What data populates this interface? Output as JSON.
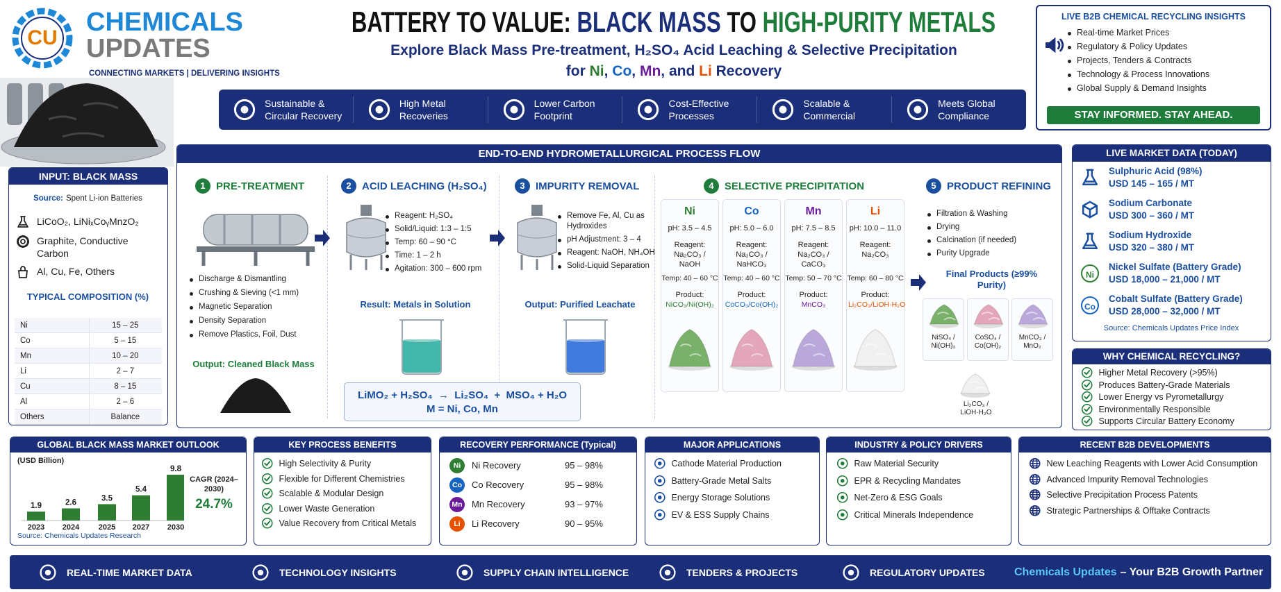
{
  "header": {
    "logo": "CU",
    "brand_line1": "CHEMICALS",
    "brand_line2": "UPDATES",
    "tagline": "CONNECTING MARKETS | DELIVERING INSIGHTS",
    "title_parts": [
      "BATTERY TO VALUE: ",
      "BLACK MASS",
      " TO ",
      "HIGH-PURITY METALS"
    ],
    "subtitle_line1": "Explore Black Mass Pre-treatment, H₂SO₄ Acid Leaching & Selective Precipitation",
    "subtitle_line2_parts": [
      "for ",
      "Ni",
      ", ",
      "Co",
      ", ",
      "Mn",
      ", and ",
      "Li",
      " Recovery"
    ]
  },
  "benefits": [
    "Sustainable & Circular Recovery",
    "High Metal Recoveries",
    "Lower Carbon Footprint",
    "Cost-Effective Processes",
    "Scalable & Commercial",
    "Meets Global Compliance"
  ],
  "insights": {
    "title": "LIVE B2B CHEMICAL RECYCLING INSIGHTS",
    "items": [
      "Real-time Market Prices",
      "Regulatory & Policy Updates",
      "Projects, Tenders & Contracts",
      "Technology & Process Innovations",
      "Global Supply & Demand Insights"
    ],
    "cta": "STAY INFORMED. STAY AHEAD."
  },
  "input": {
    "title": "INPUT: BLACK MASS",
    "source_label": "Source:",
    "source": "Spent Li-ion Batteries",
    "items": [
      "LiCoO₂, LiNiₓCoᵧMnzO₂",
      "Graphite, Conductive Carbon",
      "Al, Cu, Fe, Others"
    ],
    "composition_title": "TYPICAL COMPOSITION (%)",
    "composition": [
      [
        "Ni",
        "15 – 25"
      ],
      [
        "Co",
        "5 – 15"
      ],
      [
        "Mn",
        "10 – 20"
      ],
      [
        "Li",
        "2 – 7"
      ],
      [
        "Cu",
        "8 – 15"
      ],
      [
        "Al",
        "2 – 6"
      ],
      [
        "Others",
        "Balance"
      ]
    ]
  },
  "process": {
    "title": "END-TO-END HYDROMETALLURGICAL PROCESS FLOW",
    "steps": [
      {
        "number": "1",
        "title": "PRE-TREATMENT",
        "items": [
          "Discharge & Dismantling",
          "Crushing & Sieving (<1 mm)",
          "Magnetic Separation",
          "Density Separation",
          "Remove Plastics, Foil, Dust"
        ],
        "output": "Output: Cleaned Black Mass"
      },
      {
        "number": "2",
        "title": "ACID LEACHING (H₂SO₄)",
        "items": [
          "Reagent: H₂SO₄",
          "Solid/Liquid: 1:3 – 1:5",
          "Temp: 60 – 90 °C",
          "Time: 1 – 2 h",
          "Agitation: 300 – 600 rpm"
        ],
        "output": "Result: Metals in Solution"
      },
      {
        "number": "3",
        "title": "IMPURITY REMOVAL",
        "items": [
          "Remove Fe, Al, Cu as Hydroxides",
          "pH Adjustment: 3 – 4",
          "Reagent: NaOH, NH₄OH",
          "Solid-Liquid Separation"
        ],
        "output": "Output: Purified Leachate"
      },
      {
        "number": "4",
        "title": "SELECTIVE PRECIPITATION",
        "metals": [
          {
            "symbol": "Ni",
            "ph": "pH: 3.5 – 4.5",
            "reagent_label": "Reagent:",
            "reagent": "Na₂CO₃ / NaOH",
            "temp": "Temp: 40 – 60 °C",
            "product_label": "Product:",
            "product": "NiCO₃/Ni(OH)₂"
          },
          {
            "symbol": "Co",
            "ph": "pH: 5.0 – 6.0",
            "reagent_label": "Reagent:",
            "reagent": "Na₂CO₃ / NaHCO₃",
            "temp": "Temp: 40 – 60 °C",
            "product_label": "Product:",
            "product": "CoCO₃/Co(OH)₂"
          },
          {
            "symbol": "Mn",
            "ph": "pH: 7.5 – 8.5",
            "reagent_label": "Reagent:",
            "reagent": "Na₂CO₃ / CaCO₃",
            "temp": "Temp: 50 – 70 °C",
            "product_label": "Product:",
            "product": "MnCO₃"
          },
          {
            "symbol": "Li",
            "ph": "pH: 10.0 – 11.0",
            "reagent_label": "Reagent:",
            "reagent": "Na₂CO₃",
            "temp": "Temp: 60 – 80 °C",
            "product_label": "Product:",
            "product": "Li₂CO₃/LiOH·H₂O"
          }
        ]
      },
      {
        "number": "5",
        "title": "PRODUCT REFINING",
        "items": [
          "Filtration & Washing",
          "Drying",
          "Calcination (if needed)",
          "Purity Upgrade"
        ],
        "output": "Final Products (≥99% Purity)",
        "products": [
          "NiSO₄ / Ni(OH)₂",
          "CoSO₄ / Co(OH)₂",
          "MnCO₃ / MnO₂",
          "Li₂CO₃ / LiOH·H₂O"
        ]
      }
    ],
    "equation": "LiMO₂ + H₂SO₄  →  Li₂SO₄  +  MSO₄ + H₂O",
    "equation_note": "M = Ni, Co, Mn"
  },
  "market_data": {
    "title": "LIVE MARKET DATA (TODAY)",
    "items": [
      {
        "name": "Sulphuric Acid (98%)",
        "price": "USD 145 – 165 / MT"
      },
      {
        "name": "Sodium Carbonate",
        "price": "USD 300 – 360 / MT"
      },
      {
        "name": "Sodium Hydroxide",
        "price": "USD 320 – 380 / MT"
      },
      {
        "icon": "Ni",
        "name": "Nickel Sulfate (Battery Grade)",
        "price": "USD 18,000 – 21,000 / MT"
      },
      {
        "icon": "Co",
        "name": "Cobalt Sulfate (Battery Grade)",
        "price": "USD 28,000 – 32,000 / MT"
      }
    ],
    "source": "Source: Chemicals Updates Price Index"
  },
  "why": {
    "title": "WHY CHEMICAL RECYCLING?",
    "items": [
      "Higher Metal Recovery (>95%)",
      "Produces Battery-Grade Materials",
      "Lower Energy vs Pyrometallurgy",
      "Environmentally Responsible",
      "Supports Circular Battery Economy"
    ]
  },
  "chart_data": {
    "type": "bar",
    "title": "GLOBAL BLACK MASS MARKET OUTLOOK",
    "y_label": "(USD Billion)",
    "categories": [
      "2023",
      "2024",
      "2025",
      "2027",
      "2030"
    ],
    "values": [
      1.9,
      2.6,
      3.5,
      5.4,
      9.8
    ],
    "color": "#2e7d32",
    "cagr_label": "CAGR (2024–2030)",
    "cagr": "24.7%",
    "source": "Source: Chemicals Updates Research"
  },
  "key_benefits": {
    "title": "KEY PROCESS BENEFITS",
    "items": [
      "High Selectivity & Purity",
      "Flexible for Different Chemistries",
      "Scalable & Modular Design",
      "Lower Waste Generation",
      "Value Recovery from Critical Metals"
    ]
  },
  "recovery": {
    "title": "RECOVERY PERFORMANCE (Typical)",
    "rows": [
      {
        "symbol": "Ni",
        "label": "Ni Recovery",
        "value": "95 – 98%"
      },
      {
        "symbol": "Co",
        "label": "Co Recovery",
        "value": "95 – 98%"
      },
      {
        "symbol": "Mn",
        "label": "Mn Recovery",
        "value": "93 – 97%"
      },
      {
        "symbol": "Li",
        "label": "Li Recovery",
        "value": "90 – 95%"
      }
    ]
  },
  "applications": {
    "title": "MAJOR APPLICATIONS",
    "items": [
      "Cathode Material Production",
      "Battery-Grade Metal Salts",
      "Energy Storage Solutions",
      "EV & ESS Supply Chains"
    ]
  },
  "drivers": {
    "title": "INDUSTRY & POLICY DRIVERS",
    "items": [
      "Raw Material Security",
      "EPR & Recycling Mandates",
      "Net-Zero & ESG Goals",
      "Critical Minerals Independence"
    ]
  },
  "developments": {
    "title": "RECENT B2B DEVELOPMENTS",
    "items": [
      "New Leaching Reagents with Lower Acid Consumption",
      "Advanced Impurity Removal Technologies",
      "Selective Precipitation Process Patents",
      "Strategic Partnerships & Offtake Contracts"
    ]
  },
  "footer": {
    "items": [
      "REAL-TIME MARKET DATA",
      "TECHNOLOGY INSIGHTS",
      "SUPPLY CHAIN INTELLIGENCE",
      "TENDERS & PROJECTS",
      "REGULATORY UPDATES"
    ],
    "brand": "Chemicals Updates",
    "tagline": "– Your B2B Growth Partner"
  }
}
